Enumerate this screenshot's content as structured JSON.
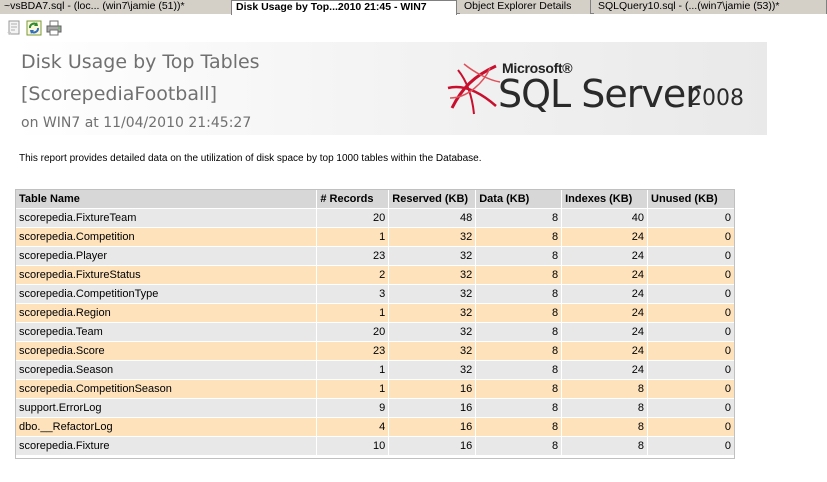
{
  "tabs": [
    {
      "label": "~vsBDA7.sql - (loc... (win7\\jamie (51))*"
    },
    {
      "label": "Disk Usage by Top...2010 21:45 - WIN7"
    },
    {
      "label": "Object Explorer Details"
    },
    {
      "label": "SQLQuery10.sql - (...(win7\\jamie (53))*"
    }
  ],
  "toolbar": {
    "icons": [
      "document-map-icon",
      "refresh-icon",
      "print-icon"
    ]
  },
  "report": {
    "title_line1": "Disk Usage by Top Tables",
    "title_line2": "[ScorepediaFootball]",
    "subtitle": "on WIN7 at 11/04/2010 21:45:27",
    "description": "This report provides detailed data on the utilization of disk space by top 1000 tables within the Database."
  },
  "logo": {
    "microsoft": "Microsoft®",
    "product": "SQL Server",
    "year": "2008"
  },
  "table": {
    "headers": [
      "Table Name",
      "# Records",
      "Reserved (KB)",
      "Data (KB)",
      "Indexes (KB)",
      "Unused (KB)"
    ],
    "rows": [
      [
        "scorepedia.FixtureTeam",
        "20",
        "48",
        "8",
        "40",
        "0"
      ],
      [
        "scorepedia.Competition",
        "1",
        "32",
        "8",
        "24",
        "0"
      ],
      [
        "scorepedia.Player",
        "23",
        "32",
        "8",
        "24",
        "0"
      ],
      [
        "scorepedia.FixtureStatus",
        "2",
        "32",
        "8",
        "24",
        "0"
      ],
      [
        "scorepedia.CompetitionType",
        "3",
        "32",
        "8",
        "24",
        "0"
      ],
      [
        "scorepedia.Region",
        "1",
        "32",
        "8",
        "24",
        "0"
      ],
      [
        "scorepedia.Team",
        "20",
        "32",
        "8",
        "24",
        "0"
      ],
      [
        "scorepedia.Score",
        "23",
        "32",
        "8",
        "24",
        "0"
      ],
      [
        "scorepedia.Season",
        "1",
        "32",
        "8",
        "24",
        "0"
      ],
      [
        "scorepedia.CompetitionSeason",
        "1",
        "16",
        "8",
        "8",
        "0"
      ],
      [
        "support.ErrorLog",
        "9",
        "16",
        "8",
        "8",
        "0"
      ],
      [
        "dbo.__RefactorLog",
        "4",
        "16",
        "8",
        "8",
        "0"
      ],
      [
        "scorepedia.Fixture",
        "10",
        "16",
        "8",
        "8",
        "0"
      ]
    ]
  }
}
